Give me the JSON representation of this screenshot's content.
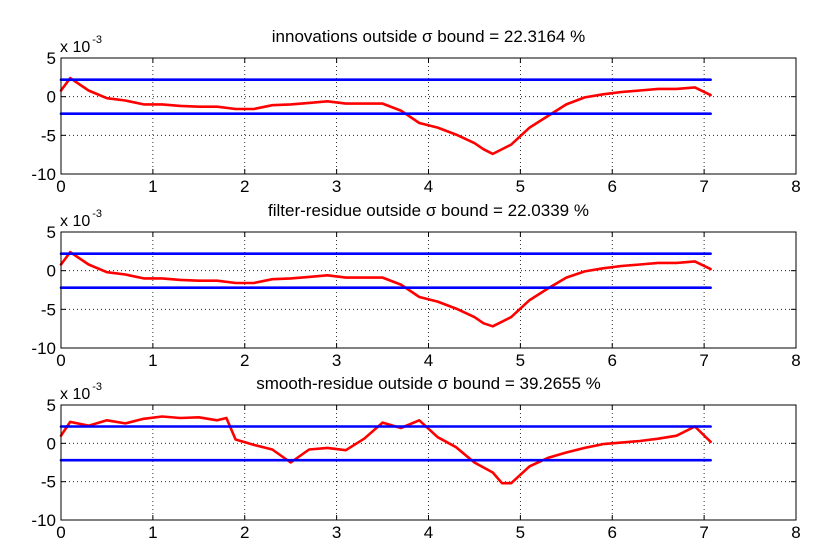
{
  "chart_data": [
    {
      "type": "line",
      "title": "innovations outside σ bound = 22.3164 %",
      "y_multiplier": {
        "base": "x 10",
        "exponent": "-3"
      },
      "xlim": [
        0,
        8
      ],
      "ylim": [
        -10,
        5
      ],
      "xticks": [
        0,
        1,
        2,
        3,
        4,
        5,
        6,
        7,
        8
      ],
      "yticks": [
        -10,
        -5,
        0,
        5
      ],
      "grid": true,
      "series": [
        {
          "color": "#ff0000",
          "x": [
            0,
            0.1,
            0.3,
            0.5,
            0.7,
            0.9,
            1.1,
            1.3,
            1.5,
            1.7,
            1.9,
            2.1,
            2.3,
            2.5,
            2.7,
            2.9,
            3.1,
            3.3,
            3.5,
            3.7,
            3.9,
            4.1,
            4.3,
            4.5,
            4.6,
            4.7,
            4.9,
            5.1,
            5.3,
            5.5,
            5.7,
            5.9,
            6.1,
            6.3,
            6.5,
            6.7,
            6.9,
            7.07
          ],
          "y": [
            0.8,
            2.4,
            0.8,
            -0.2,
            -0.5,
            -1.0,
            -1.0,
            -1.2,
            -1.3,
            -1.3,
            -1.6,
            -1.6,
            -1.1,
            -1.0,
            -0.8,
            -0.6,
            -0.9,
            -0.9,
            -0.9,
            -1.8,
            -3.4,
            -4.0,
            -4.9,
            -6.0,
            -6.8,
            -7.4,
            -6.2,
            -4.0,
            -2.5,
            -1.0,
            -0.1,
            0.3,
            0.6,
            0.8,
            1.0,
            1.0,
            1.2,
            0.2
          ]
        },
        {
          "color": "#0000ff",
          "x": [
            0,
            7.07
          ],
          "y": [
            2.2,
            2.2
          ]
        },
        {
          "color": "#0000ff",
          "x": [
            0,
            7.07
          ],
          "y": [
            -2.2,
            -2.2
          ]
        }
      ]
    },
    {
      "type": "line",
      "title": "filter-residue outside σ bound = 22.0339 %",
      "y_multiplier": {
        "base": "x 10",
        "exponent": "-3"
      },
      "xlim": [
        0,
        8
      ],
      "ylim": [
        -10,
        5
      ],
      "xticks": [
        0,
        1,
        2,
        3,
        4,
        5,
        6,
        7,
        8
      ],
      "yticks": [
        -10,
        -5,
        0,
        5
      ],
      "grid": true,
      "series": [
        {
          "color": "#ff0000",
          "x": [
            0,
            0.1,
            0.3,
            0.5,
            0.7,
            0.9,
            1.1,
            1.3,
            1.5,
            1.7,
            1.9,
            2.1,
            2.3,
            2.5,
            2.7,
            2.9,
            3.1,
            3.3,
            3.5,
            3.7,
            3.9,
            4.1,
            4.3,
            4.5,
            4.6,
            4.7,
            4.9,
            5.1,
            5.3,
            5.5,
            5.7,
            5.9,
            6.1,
            6.3,
            6.5,
            6.7,
            6.9,
            7.07
          ],
          "y": [
            0.8,
            2.4,
            0.8,
            -0.2,
            -0.5,
            -1.0,
            -1.0,
            -1.2,
            -1.3,
            -1.3,
            -1.6,
            -1.6,
            -1.1,
            -1.0,
            -0.8,
            -0.6,
            -0.9,
            -0.9,
            -0.9,
            -1.8,
            -3.4,
            -4.0,
            -4.9,
            -6.0,
            -6.8,
            -7.2,
            -6.0,
            -3.8,
            -2.3,
            -0.9,
            -0.1,
            0.3,
            0.6,
            0.8,
            1.0,
            1.0,
            1.2,
            0.2
          ]
        },
        {
          "color": "#0000ff",
          "x": [
            0,
            7.07
          ],
          "y": [
            2.2,
            2.2
          ]
        },
        {
          "color": "#0000ff",
          "x": [
            0,
            7.07
          ],
          "y": [
            -2.2,
            -2.2
          ]
        }
      ]
    },
    {
      "type": "line",
      "title": "smooth-residue outside σ bound = 39.2655 %",
      "y_multiplier": {
        "base": "x 10",
        "exponent": "-3"
      },
      "xlim": [
        0,
        8
      ],
      "ylim": [
        -10,
        5
      ],
      "xticks": [
        0,
        1,
        2,
        3,
        4,
        5,
        6,
        7,
        8
      ],
      "yticks": [
        -10,
        -5,
        0,
        5
      ],
      "grid": true,
      "series": [
        {
          "color": "#ff0000",
          "x": [
            0,
            0.1,
            0.3,
            0.5,
            0.7,
            0.9,
            1.1,
            1.3,
            1.5,
            1.7,
            1.8,
            1.9,
            2.1,
            2.3,
            2.5,
            2.7,
            2.9,
            3.1,
            3.3,
            3.5,
            3.7,
            3.9,
            4.1,
            4.3,
            4.5,
            4.7,
            4.8,
            4.9,
            5.1,
            5.3,
            5.5,
            5.7,
            5.9,
            6.1,
            6.3,
            6.5,
            6.7,
            6.9,
            7.07
          ],
          "y": [
            1.0,
            2.8,
            2.3,
            3.0,
            2.6,
            3.2,
            3.5,
            3.3,
            3.4,
            3.0,
            3.3,
            0.5,
            -0.2,
            -0.8,
            -2.5,
            -0.8,
            -0.6,
            -0.9,
            0.6,
            2.7,
            2.0,
            3.0,
            0.8,
            -0.5,
            -2.5,
            -3.8,
            -5.2,
            -5.2,
            -3.0,
            -1.9,
            -1.2,
            -0.6,
            -0.1,
            0.1,
            0.3,
            0.6,
            1.0,
            2.2,
            0.2
          ]
        },
        {
          "color": "#0000ff",
          "x": [
            0,
            7.07
          ],
          "y": [
            2.2,
            2.2
          ]
        },
        {
          "color": "#0000ff",
          "x": [
            0,
            7.07
          ],
          "y": [
            -2.2,
            -2.2
          ]
        }
      ]
    }
  ]
}
